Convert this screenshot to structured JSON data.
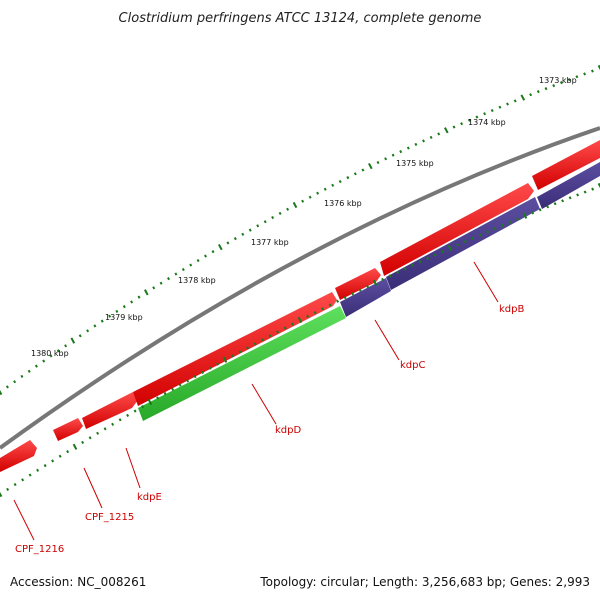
{
  "title": "Clostridium perfringens ATCC 13124, complete genome",
  "ruler": [
    {
      "label": "1373 kbp"
    },
    {
      "label": "1374 kbp"
    },
    {
      "label": "1375 kbp"
    },
    {
      "label": "1376 kbp"
    },
    {
      "label": "1377 kbp"
    },
    {
      "label": "1378 kbp"
    },
    {
      "label": "1379 kbp"
    },
    {
      "label": "1380 kbp"
    }
  ],
  "genes": [
    {
      "name": "kdpB",
      "color": "#e00000"
    },
    {
      "name": "kdpC",
      "color": "#e00000"
    },
    {
      "name": "kdpD",
      "color": "#e00000"
    },
    {
      "name": "kdpE",
      "color": "#e00000"
    },
    {
      "name": "CPF_1215",
      "color": "#e00000"
    },
    {
      "name": "CPF_1216",
      "color": "#e00000"
    }
  ],
  "track_colors": {
    "backbone": "#777777",
    "cds": "#e00000",
    "transporter": "#4b3c8c",
    "signal": "#33bb33",
    "ruler_ticks": "#1a7a1a"
  },
  "footer": {
    "accession": "Accession: NC_008261",
    "stats": "Topology: circular; Length: 3,256,683 bp; Genes: 2,993"
  }
}
